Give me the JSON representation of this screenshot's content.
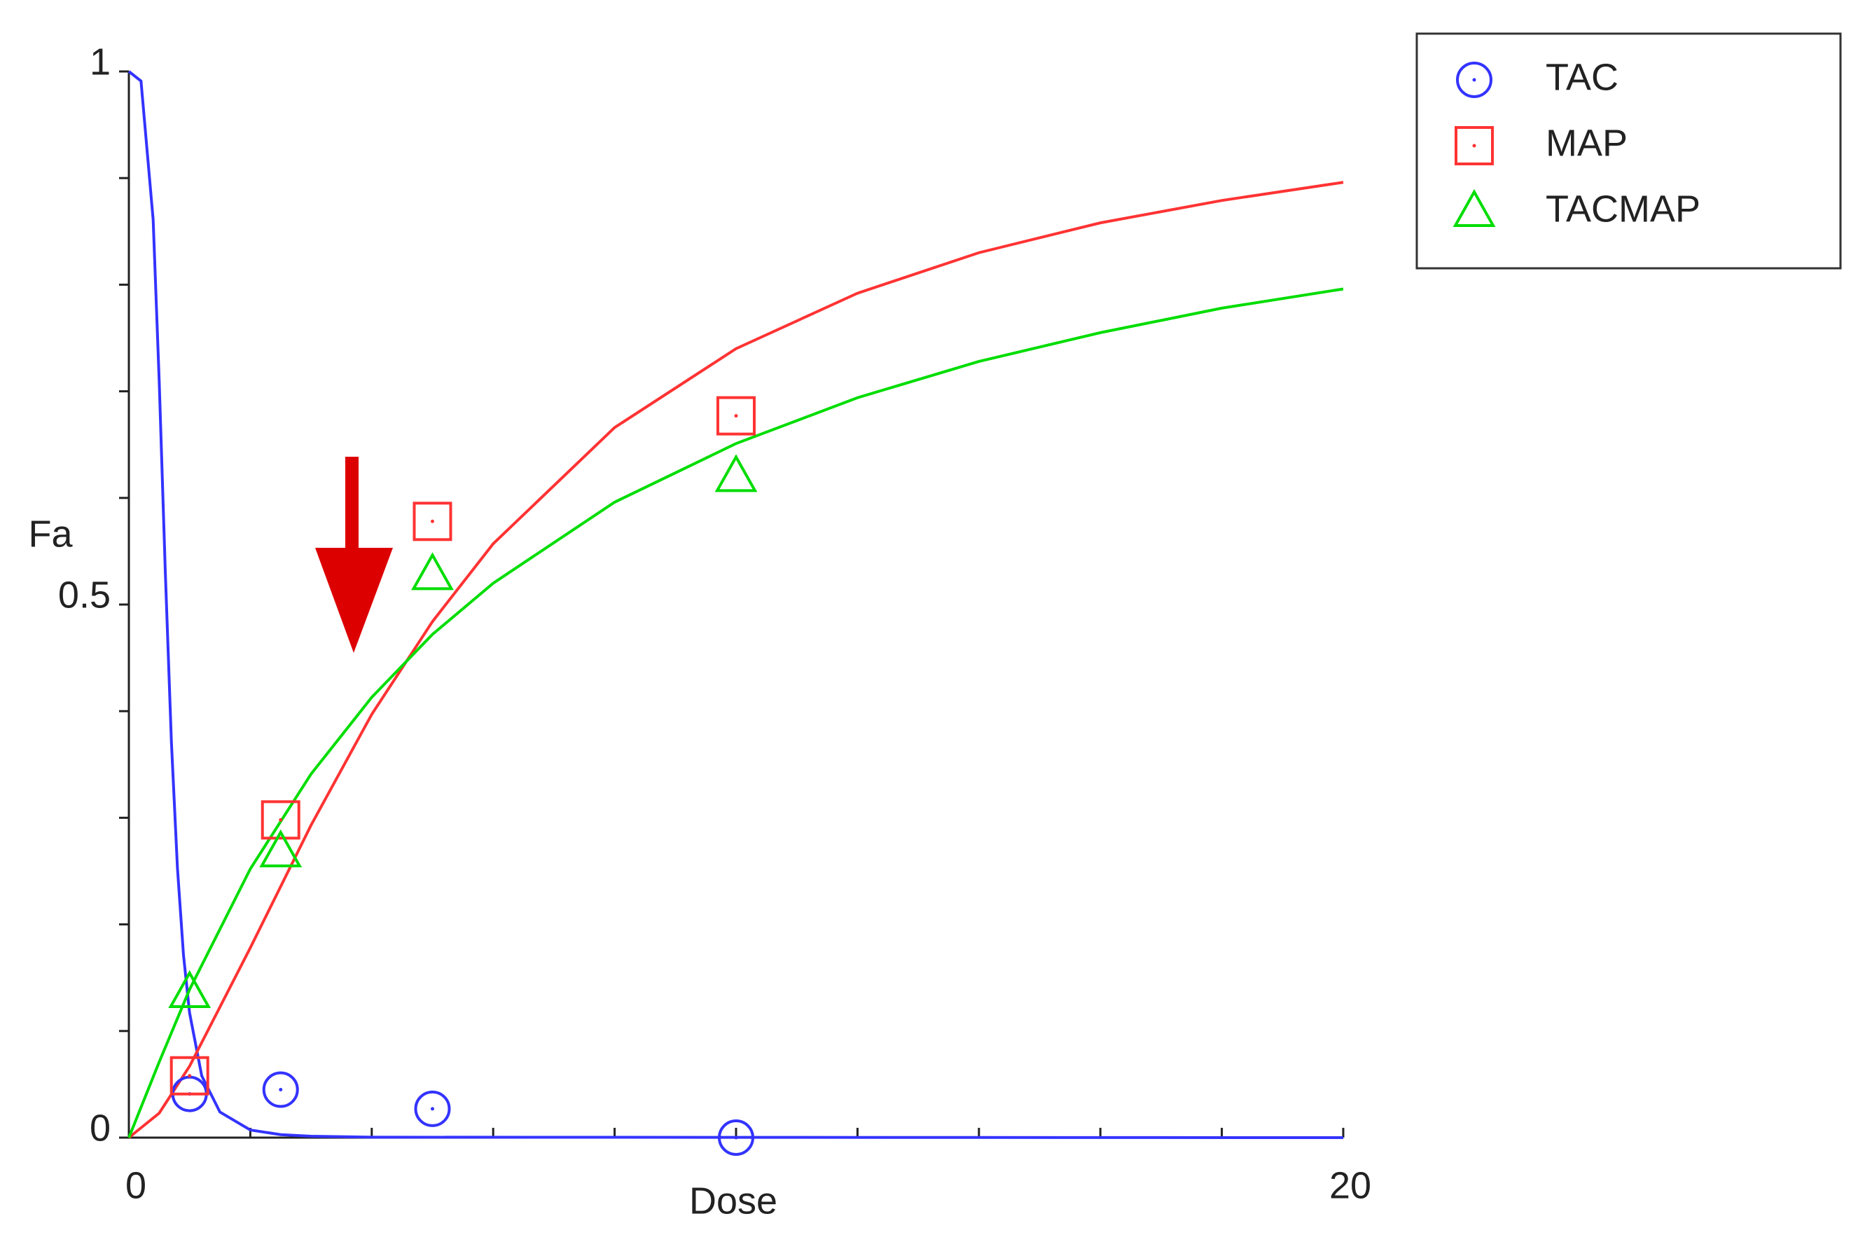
{
  "chart_data": {
    "type": "scatter",
    "x_label": "Dose",
    "y_label": "Fa",
    "xlim": [
      0,
      20
    ],
    "ylim": [
      0,
      1
    ],
    "xticks": [
      0,
      20
    ],
    "yticks": [
      0,
      0.5,
      1
    ],
    "xticks_minor": [
      2,
      4,
      6,
      8,
      10,
      12,
      14,
      16,
      18
    ],
    "yticks_minor": [
      0.1,
      0.2,
      0.3,
      0.4,
      0.6,
      0.7,
      0.8,
      0.9
    ],
    "legend": "outside-top-right",
    "series": [
      {
        "name": "TAC",
        "color": "#3333ff",
        "marker": "circle",
        "x": [
          1,
          2.5,
          5,
          10
        ],
        "values": [
          0.041,
          0.045,
          0.027,
          0
        ]
      },
      {
        "name": "MAP",
        "color": "#ff3333",
        "marker": "square",
        "x": [
          1,
          2.5,
          5,
          10
        ],
        "values": [
          0.058,
          0.298,
          0.578,
          0.677
        ]
      },
      {
        "name": "TACMAP",
        "color": "#00dd00",
        "marker": "triangle",
        "x": [
          1,
          2.5,
          5,
          10
        ],
        "values": [
          0.136,
          0.268,
          0.528,
          0.62
        ]
      }
    ],
    "curves": [
      {
        "color": "#3333ff",
        "x": [
          0,
          0.2,
          0.4,
          0.5,
          0.6,
          0.7,
          0.8,
          0.9,
          1,
          1.2,
          1.5,
          2,
          2.5,
          3,
          4,
          20
        ],
        "y": [
          1,
          0.991,
          0.861,
          0.709,
          0.531,
          0.372,
          0.253,
          0.171,
          0.117,
          0.058,
          0.024,
          0.0072,
          0.0028,
          0.0013,
          0.0004,
          0
        ]
      },
      {
        "color": "#ff3333",
        "x": [
          0,
          0.5,
          1,
          2,
          3,
          4,
          5,
          6,
          8,
          10,
          12,
          14,
          16,
          18,
          20
        ],
        "y": [
          0,
          0.023,
          0.067,
          0.178,
          0.293,
          0.397,
          0.484,
          0.557,
          0.666,
          0.74,
          0.792,
          0.83,
          0.858,
          0.879,
          0.896
        ]
      },
      {
        "color": "#00dd00",
        "x": [
          0,
          0.5,
          1,
          2,
          3,
          4,
          5,
          6,
          8,
          10,
          12,
          14,
          16,
          18,
          20
        ],
        "y": [
          0,
          0.071,
          0.139,
          0.252,
          0.341,
          0.413,
          0.472,
          0.52,
          0.596,
          0.651,
          0.694,
          0.728,
          0.755,
          0.778,
          0.796
        ]
      }
    ]
  }
}
